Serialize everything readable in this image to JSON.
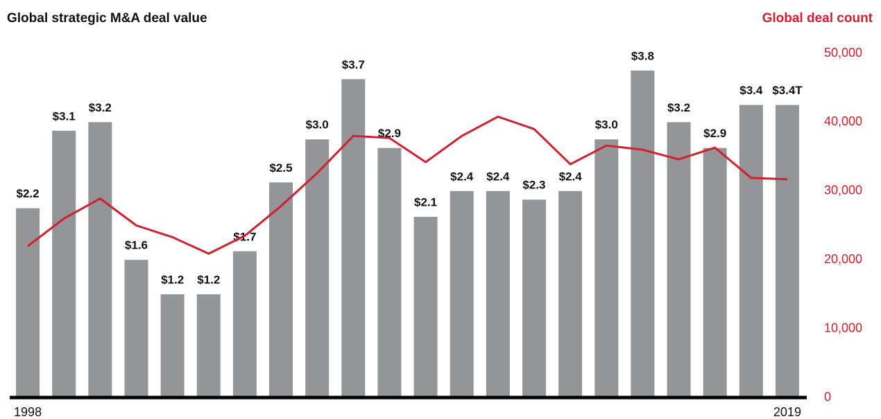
{
  "chart_data": {
    "type": "bar",
    "title": "Global strategic M&A deal value",
    "y2label": "Global deal count",
    "categories": [
      "1998",
      null,
      null,
      null,
      null,
      null,
      null,
      null,
      null,
      null,
      null,
      null,
      null,
      null,
      null,
      null,
      null,
      null,
      null,
      null,
      null,
      "2019"
    ],
    "series": [
      {
        "type": "bar",
        "color": "#939598",
        "values": [
          2.2,
          3.1,
          3.2,
          1.6,
          1.2,
          1.2,
          1.7,
          2.5,
          3.0,
          3.7,
          2.9,
          2.1,
          2.4,
          2.4,
          2.3,
          2.4,
          3.0,
          3.8,
          3.2,
          2.9,
          3.4,
          3.4
        ],
        "value_labels": [
          "$2.2",
          "$3.1",
          "$3.2",
          "$1.6",
          "$1.2",
          "$1.2",
          "$1.7",
          "$2.5",
          "$3.0",
          "$3.7",
          "$2.9",
          "$2.1",
          "$2.4",
          "$2.4",
          "$2.3",
          "$2.4",
          "$3.0",
          "$3.8",
          "$3.2",
          "$2.9",
          "$3.4",
          "$3.4T"
        ]
      },
      {
        "type": "line",
        "axis": "y2",
        "color": "#d0202e",
        "values": [
          22000,
          26000,
          28900,
          25000,
          23300,
          20900,
          23500,
          27800,
          32600,
          38000,
          37700,
          34200,
          38000,
          40800,
          39000,
          33900,
          36600,
          36000,
          34600,
          36300,
          31900,
          31700
        ]
      }
    ],
    "ylim": [
      0,
      4
    ],
    "y2lim": [
      0,
      50000
    ],
    "y2ticks": [
      0,
      {
        "value": 10000,
        "label": "10,000"
      },
      {
        "value": 20000,
        "label": "20,000"
      },
      {
        "value": 30000,
        "label": "30,000"
      },
      {
        "value": 40000,
        "label": "40,000"
      },
      {
        "value": 50000,
        "label": "50,000"
      }
    ],
    "y2color": "#d0202e"
  }
}
